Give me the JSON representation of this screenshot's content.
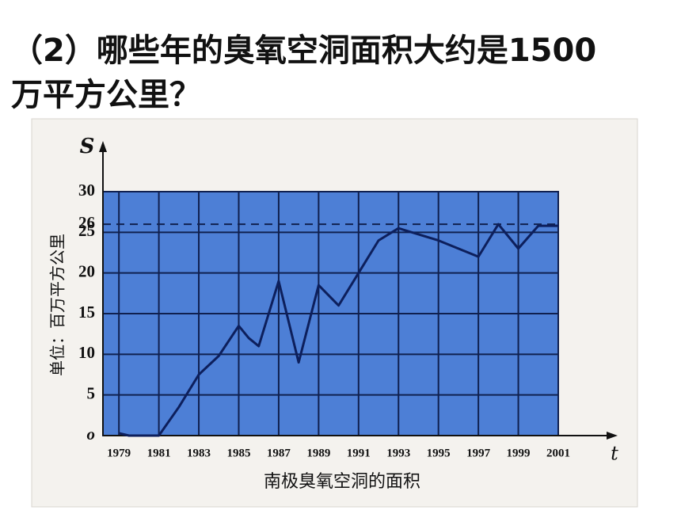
{
  "question": {
    "lines": [
      "（2）哪些年的臭氧空洞面积大约是1500",
      "万平方公里？"
    ]
  },
  "chart_data": {
    "type": "line",
    "title": "南极臭氧空洞的面积",
    "y_axis_label": "单位：百万平方公里",
    "y_axis_symbol": "S",
    "x_axis_symbol": "t",
    "x": [
      1979,
      1979.5,
      1980,
      1981,
      1982,
      1983,
      1984,
      1985,
      1985.5,
      1986,
      1987,
      1988,
      1989,
      1990,
      1991,
      1992,
      1993,
      1995,
      1997,
      1998,
      1999,
      2000,
      2001
    ],
    "values": [
      0.3,
      0,
      0,
      0,
      3.5,
      7.5,
      9.8,
      13.5,
      12,
      11,
      19,
      9,
      18.5,
      16,
      20,
      24,
      25.5,
      24,
      22,
      26,
      23,
      25.8,
      25.8
    ],
    "color": "#0d1f5c",
    "xlim": [
      1978.2,
      2001
    ],
    "xticks": [
      1979,
      1981,
      1983,
      1985,
      1987,
      1989,
      1991,
      1993,
      1995,
      1997,
      1999,
      2001
    ],
    "ylim": [
      0,
      30
    ],
    "yticks": [
      {
        "value": 0,
        "label": "o"
      },
      5,
      10,
      15,
      20,
      25,
      26,
      30
    ],
    "reference_line": {
      "value": 26,
      "style": "dashed"
    },
    "grid": true,
    "plot_color": "#4d7fd6"
  }
}
